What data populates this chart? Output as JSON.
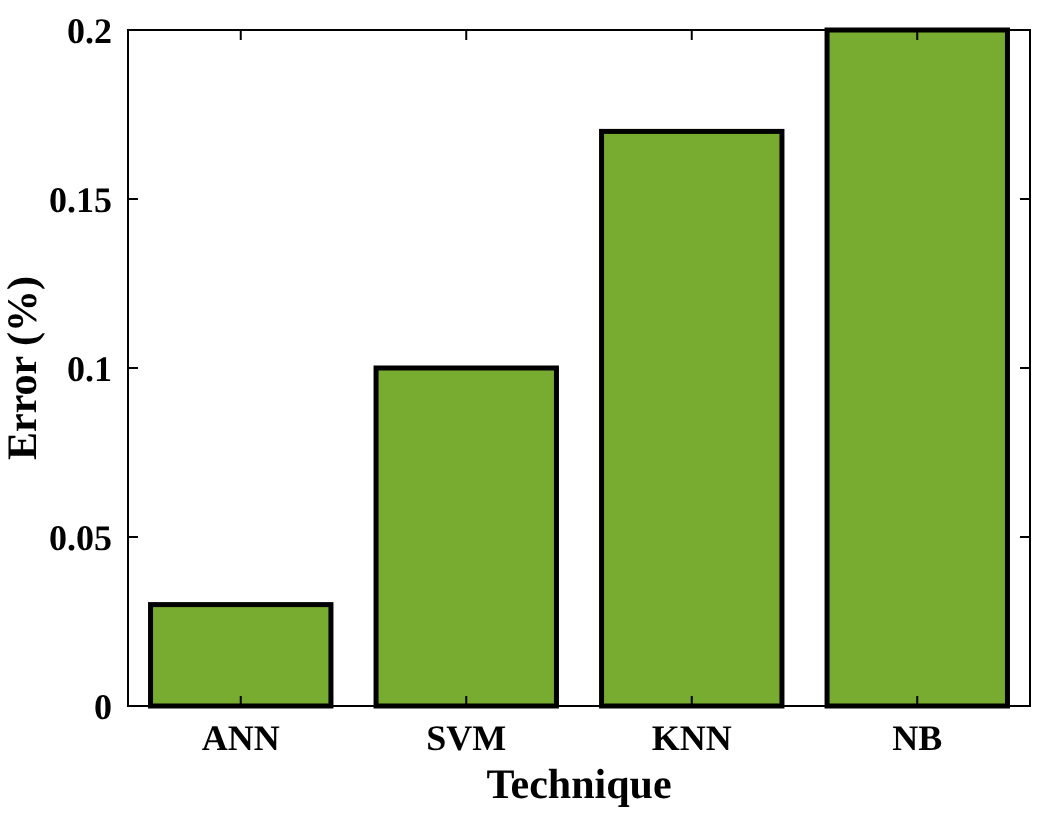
{
  "chart_data": {
    "type": "bar",
    "xlabel": "Technique",
    "ylabel": "Error (%)",
    "categories": [
      "ANN",
      "SVM",
      "KNN",
      "NB"
    ],
    "values": [
      0.03,
      0.1,
      0.17,
      0.2
    ],
    "color": "#77ac30",
    "ylim": [
      0,
      0.2
    ],
    "yticks": [
      0,
      0.05,
      0.1,
      0.15,
      0.2
    ]
  }
}
